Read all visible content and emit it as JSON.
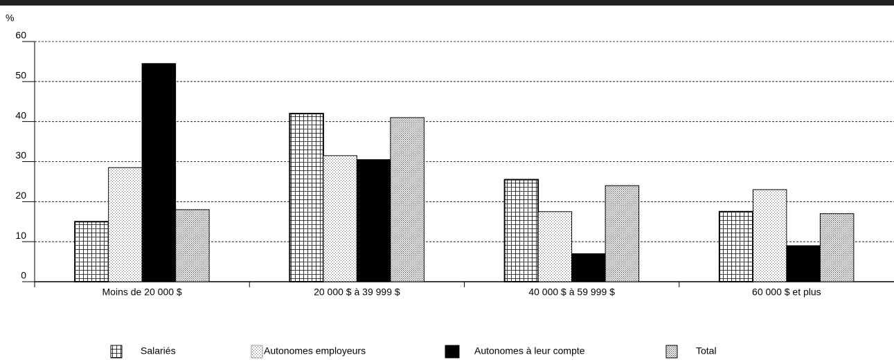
{
  "chart_data": {
    "type": "bar",
    "y_label": "%",
    "categories": [
      "Moins de 20 000 $",
      "20 000 $  à 39 999 $",
      "40 000 $  à 59 999 $",
      "60 000 $ et plus"
    ],
    "series": [
      {
        "name": "Salariés",
        "values": [
          15,
          42,
          25.5,
          17.5
        ]
      },
      {
        "name": "Autonomes employeurs",
        "values": [
          28.5,
          31.5,
          17.5,
          23
        ]
      },
      {
        "name": "Autonomes à leur compte",
        "values": [
          54.5,
          30.5,
          7,
          9
        ]
      },
      {
        "name": "Total",
        "values": [
          18,
          41,
          24,
          17
        ]
      }
    ],
    "ylim": [
      0,
      60
    ],
    "yticks": [
      0,
      10,
      20,
      30,
      40,
      50,
      60
    ],
    "grid": true
  }
}
